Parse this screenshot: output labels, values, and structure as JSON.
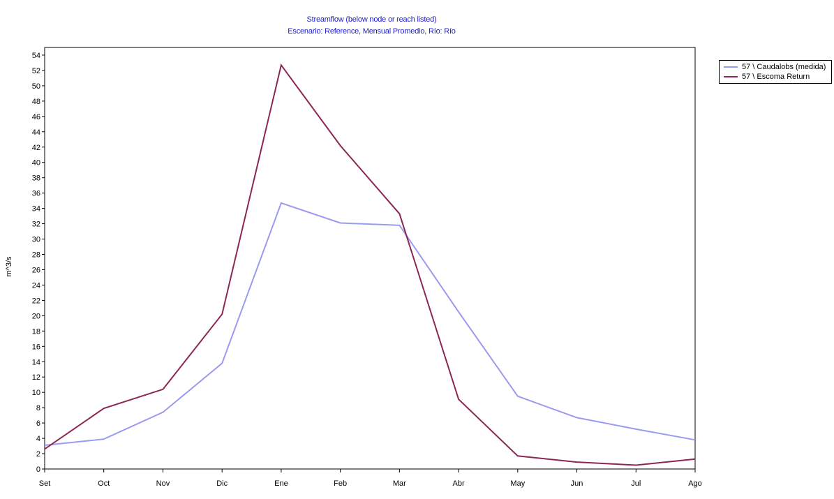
{
  "colors": {
    "title": "#2020d0",
    "series_1": "#9a9af0",
    "series_2": "#8b2755",
    "axis": "#000000"
  },
  "chart_data": {
    "type": "line",
    "title": "Streamflow (below node or reach listed)",
    "subtitle": "Escenario: Reference, Mensual Promedio, Río: Río",
    "xlabel": "",
    "ylabel": "m^3/s",
    "categories": [
      "Set",
      "Oct",
      "Nov",
      "Dic",
      "Ene",
      "Feb",
      "Mar",
      "Abr",
      "May",
      "Jun",
      "Jul",
      "Ago"
    ],
    "yticks": [
      0,
      2,
      4,
      6,
      8,
      10,
      12,
      14,
      16,
      18,
      20,
      22,
      24,
      26,
      28,
      30,
      32,
      34,
      36,
      38,
      40,
      42,
      44,
      46,
      48,
      50,
      52,
      54
    ],
    "ylim": [
      0,
      55
    ],
    "grid": false,
    "legend_position": "top-right",
    "series": [
      {
        "name": "57 \\ Caudalobs (medida)",
        "color": "#9a9af0",
        "values": [
          3.1,
          3.9,
          7.4,
          13.8,
          34.7,
          32.1,
          31.8,
          20.5,
          9.5,
          6.7,
          5.2,
          3.8
        ]
      },
      {
        "name": "57 \\ Escoma Return",
        "color": "#8b2755",
        "values": [
          2.6,
          7.9,
          10.4,
          20.2,
          52.7,
          42.2,
          33.3,
          9.1,
          1.7,
          0.9,
          0.5,
          1.3
        ]
      }
    ]
  }
}
